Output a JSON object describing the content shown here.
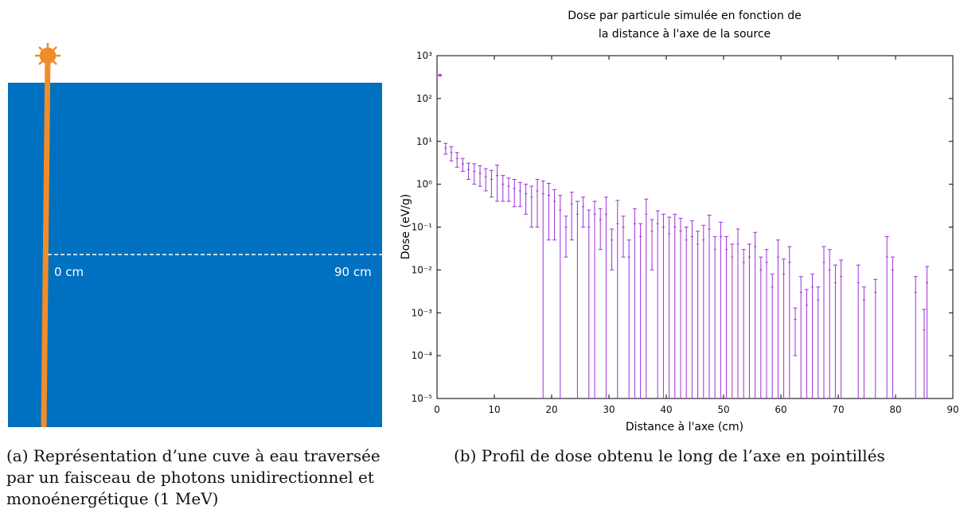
{
  "diagram": {
    "start_label": "0 cm",
    "end_label": "90 cm"
  },
  "caption_a": [
    "(a) Représentation d’une cuve à eau traversée",
    "par un faisceau de photons unidirectionnel et",
    "monoénergétique (1 MeV)"
  ],
  "caption_b": "(b) Profil de dose obtenu le long de l’axe en pointillés",
  "chart_data": {
    "type": "errorbar",
    "title": [
      "Dose par particule simulée en fonction de",
      "la distance à l'axe de la source"
    ],
    "xlabel": "Distance à l'axe (cm)",
    "ylabel": "Dose (eV/g)",
    "xlim": [
      0,
      90
    ],
    "xticks": [
      0,
      10,
      20,
      30,
      40,
      50,
      60,
      70,
      80,
      90
    ],
    "ylim": [
      1e-05,
      1000
    ],
    "log_y": true,
    "yticks": [
      {
        "value": 1e-05,
        "label": "10⁻⁵"
      },
      {
        "value": 0.0001,
        "label": "10⁻⁴"
      },
      {
        "value": 0.001,
        "label": "10⁻³"
      },
      {
        "value": 0.01,
        "label": "10⁻²"
      },
      {
        "value": 0.1,
        "label": "10⁻¹"
      },
      {
        "value": 1,
        "label": "10⁰"
      },
      {
        "value": 10,
        "label": "10¹"
      },
      {
        "value": 100,
        "label": "10²"
      },
      {
        "value": 1000,
        "label": "10³"
      }
    ],
    "color": "#9b30d9",
    "x": [
      0.5,
      1.5,
      2.5,
      3.5,
      4.5,
      5.5,
      6.5,
      7.5,
      8.5,
      9.5,
      10.5,
      11.5,
      12.5,
      13.5,
      14.5,
      15.5,
      16.5,
      17.5,
      18.5,
      19.5,
      20.5,
      21.5,
      22.5,
      23.5,
      24.5,
      25.5,
      26.5,
      27.5,
      28.5,
      29.5,
      30.5,
      31.5,
      32.5,
      33.5,
      34.5,
      35.5,
      36.5,
      37.5,
      38.5,
      39.5,
      40.5,
      41.5,
      42.5,
      43.5,
      44.5,
      45.5,
      46.5,
      47.5,
      48.5,
      49.5,
      50.5,
      51.5,
      52.5,
      53.5,
      54.5,
      55.5,
      56.5,
      57.5,
      58.5,
      59.5,
      60.5,
      61.5,
      62.5,
      63.5,
      64.5,
      65.5,
      66.5,
      67.5,
      68.5,
      69.5,
      70.5,
      73.5,
      74.5,
      76.5,
      78.5,
      79.5,
      83.5,
      85.0,
      85.5
    ],
    "values": [
      350,
      7,
      5.5,
      4,
      3,
      2.2,
      2,
      1.8,
      1.5,
      1.3,
      1.6,
      1.0,
      0.9,
      0.8,
      0.7,
      0.6,
      0.5,
      0.7,
      0.6,
      0.55,
      0.4,
      0.25,
      0.1,
      0.35,
      0.2,
      0.3,
      0.1,
      0.2,
      0.15,
      0.2,
      0.05,
      0.12,
      0.1,
      0.02,
      0.12,
      0.06,
      0.2,
      0.08,
      0.12,
      0.1,
      0.07,
      0.1,
      0.08,
      0.05,
      0.06,
      0.04,
      0.05,
      0.09,
      0.03,
      0.06,
      0.03,
      0.02,
      0.04,
      0.015,
      0.02,
      0.035,
      0.01,
      0.015,
      0.004,
      0.02,
      0.008,
      0.015,
      0.0007,
      0.003,
      0.0015,
      0.004,
      0.002,
      0.015,
      0.01,
      0.005,
      0.007,
      0.005,
      0.002,
      0.003,
      0.02,
      0.01,
      0.003,
      0.0004,
      0.005
    ],
    "errors": [
      15,
      2,
      2,
      1.5,
      1,
      0.9,
      1,
      0.9,
      0.8,
      0.8,
      1.2,
      0.6,
      0.5,
      0.5,
      0.4,
      0.4,
      0.4,
      0.6,
      0.6,
      0.5,
      0.35,
      0.3,
      0.08,
      0.3,
      0.2,
      0.2,
      0.15,
      0.2,
      0.12,
      0.3,
      0.04,
      0.3,
      0.08,
      0.03,
      0.15,
      0.06,
      0.25,
      0.07,
      0.12,
      0.1,
      0.1,
      0.1,
      0.08,
      0.05,
      0.08,
      0.04,
      0.06,
      0.1,
      0.03,
      0.07,
      0.03,
      0.02,
      0.05,
      0.015,
      0.02,
      0.04,
      0.01,
      0.015,
      0.004,
      0.03,
      0.01,
      0.02,
      0.0006,
      0.004,
      0.002,
      0.004,
      0.002,
      0.02,
      0.02,
      0.008,
      0.01,
      0.008,
      0.002,
      0.003,
      0.04,
      0.01,
      0.004,
      0.0008,
      0.007
    ]
  }
}
